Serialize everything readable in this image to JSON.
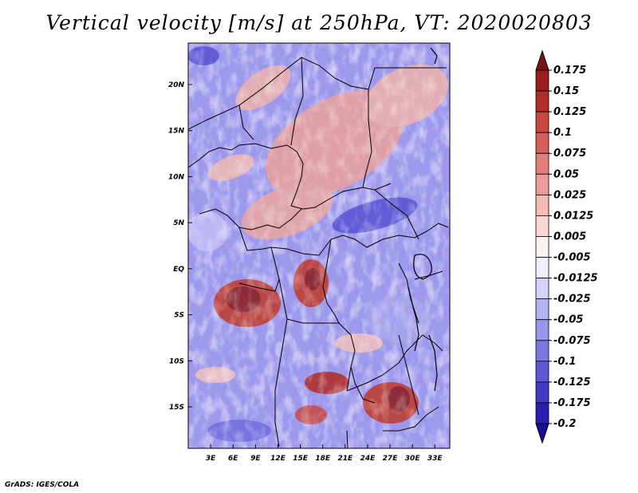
{
  "title": "Vertical velocity [m/s] at 250hPa, VT: 2020020803",
  "credit": "GrADS: IGES/COLA",
  "map": {
    "lon_range": [
      0,
      35
    ],
    "lat_range": [
      -19.5,
      24.5
    ],
    "lon_ticks": [
      {
        "value": 3,
        "label": "3E"
      },
      {
        "value": 6,
        "label": "6E"
      },
      {
        "value": 9,
        "label": "9E"
      },
      {
        "value": 12,
        "label": "12E"
      },
      {
        "value": 15,
        "label": "15E"
      },
      {
        "value": 18,
        "label": "18E"
      },
      {
        "value": 21,
        "label": "21E"
      },
      {
        "value": 24,
        "label": "24E"
      },
      {
        "value": 27,
        "label": "27E"
      },
      {
        "value": 30,
        "label": "30E"
      },
      {
        "value": 33,
        "label": "33E"
      }
    ],
    "lat_ticks": [
      {
        "value": 20,
        "label": "20N"
      },
      {
        "value": 15,
        "label": "15N"
      },
      {
        "value": 10,
        "label": "10N"
      },
      {
        "value": 5,
        "label": "5N"
      },
      {
        "value": 0,
        "label": "EQ"
      },
      {
        "value": -5,
        "label": "5S"
      },
      {
        "value": -10,
        "label": "10S"
      },
      {
        "value": -15,
        "label": "15S"
      }
    ]
  },
  "colorbar": {
    "levels": [
      {
        "label": "0.175",
        "color": "#8b1a1a"
      },
      {
        "label": "0.15",
        "color": "#a82222"
      },
      {
        "label": "0.125",
        "color": "#c0392b"
      },
      {
        "label": "0.1",
        "color": "#d0524a"
      },
      {
        "label": "0.075",
        "color": "#dc6e68"
      },
      {
        "label": "0.05",
        "color": "#e78e88"
      },
      {
        "label": "0.025",
        "color": "#f0aaa6"
      },
      {
        "label": "0.0125",
        "color": "#f7c9c6"
      },
      {
        "label": "0.005",
        "color": "#fbe4e2"
      },
      {
        "label": "-0.005",
        "color": "#ffffff"
      },
      {
        "label": "-0.0125",
        "color": "#e0dffb"
      },
      {
        "label": "-0.025",
        "color": "#c4c2f5"
      },
      {
        "label": "-0.05",
        "color": "#a8a4ee"
      },
      {
        "label": "-0.075",
        "color": "#8a85e6"
      },
      {
        "label": "-0.1",
        "color": "#6d66dc"
      },
      {
        "label": "-0.125",
        "color": "#4f47cf"
      },
      {
        "label": "-0.175",
        "color": "#3328bf"
      },
      {
        "label": "-0.2",
        "color": "#1e12a8"
      }
    ],
    "top_color": "#7a1414",
    "bottom_color": "#1a0e9a"
  }
}
